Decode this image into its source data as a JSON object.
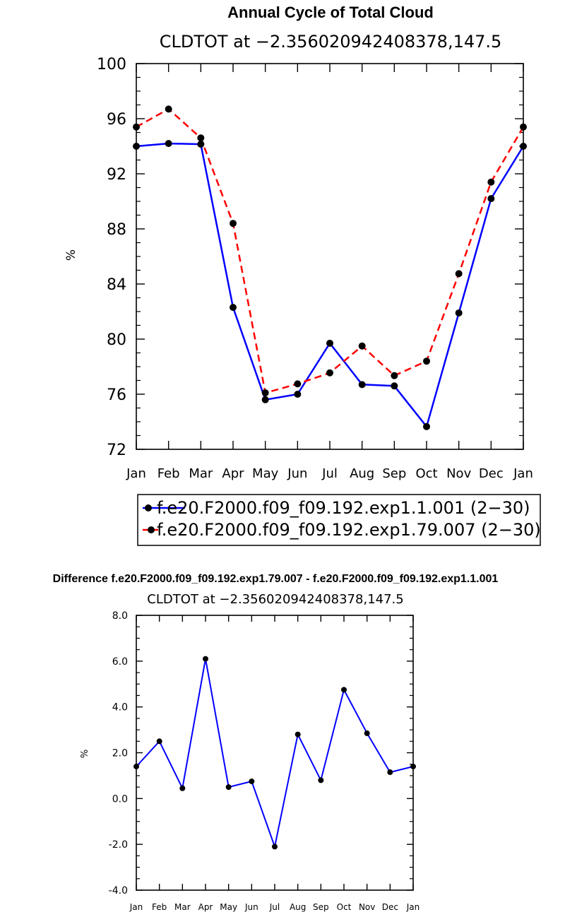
{
  "chart_data": [
    {
      "type": "line",
      "title": "Annual Cycle of Total Cloud",
      "subtitle": "CLDTOT at −2.356020942408378,147.5",
      "ylabel": "%",
      "ylim": [
        72,
        100
      ],
      "yticks": [
        "72",
        "76",
        "80",
        "84",
        "88",
        "92",
        "96",
        "100"
      ],
      "ytick_values": [
        72,
        76,
        80,
        84,
        88,
        92,
        96,
        100
      ],
      "categories": [
        "Jan",
        "Feb",
        "Mar",
        "Apr",
        "May",
        "Jun",
        "Jul",
        "Aug",
        "Sep",
        "Oct",
        "Nov",
        "Dec",
        "Jan"
      ],
      "legend_position": "bottom",
      "series": [
        {
          "name": "f.e20.F2000.f09_f09.192.exp1.1.001 (2−30)",
          "color": "#0000ff",
          "style": "solid",
          "values": [
            94.0,
            94.2,
            94.15,
            82.3,
            75.6,
            76.0,
            79.7,
            76.7,
            76.6,
            73.65,
            81.9,
            90.2,
            94.0
          ]
        },
        {
          "name": "f.e20.F2000.f09_f09.192.exp1.79.007 (2−30)",
          "color": "#ff0000",
          "style": "dashed",
          "values": [
            95.4,
            96.7,
            94.6,
            88.4,
            76.1,
            76.75,
            77.55,
            79.5,
            77.35,
            78.4,
            84.75,
            91.4,
            95.4
          ]
        }
      ]
    },
    {
      "type": "line",
      "title": "Difference f.e20.F2000.f09_f09.192.exp1.79.007 - f.e20.F2000.f09_f09.192.exp1.1.001",
      "subtitle": "CLDTOT at −2.356020942408378,147.5",
      "ylabel": "%",
      "ylim": [
        -4.0,
        8.0
      ],
      "yticks": [
        "-4.0",
        "-2.0",
        "0.0",
        "2.0",
        "4.0",
        "6.0",
        "8.0"
      ],
      "ytick_values": [
        -4,
        -2,
        0,
        2,
        4,
        6,
        8
      ],
      "categories": [
        "Jan",
        "Feb",
        "Mar",
        "Apr",
        "May",
        "Jun",
        "Jul",
        "Aug",
        "Sep",
        "Oct",
        "Nov",
        "Dec",
        "Jan"
      ],
      "series": [
        {
          "color": "#0000ff",
          "style": "solid",
          "values": [
            1.4,
            2.5,
            0.45,
            6.1,
            0.5,
            0.75,
            -2.1,
            2.8,
            0.8,
            4.75,
            2.85,
            1.15,
            1.4
          ]
        }
      ]
    }
  ]
}
